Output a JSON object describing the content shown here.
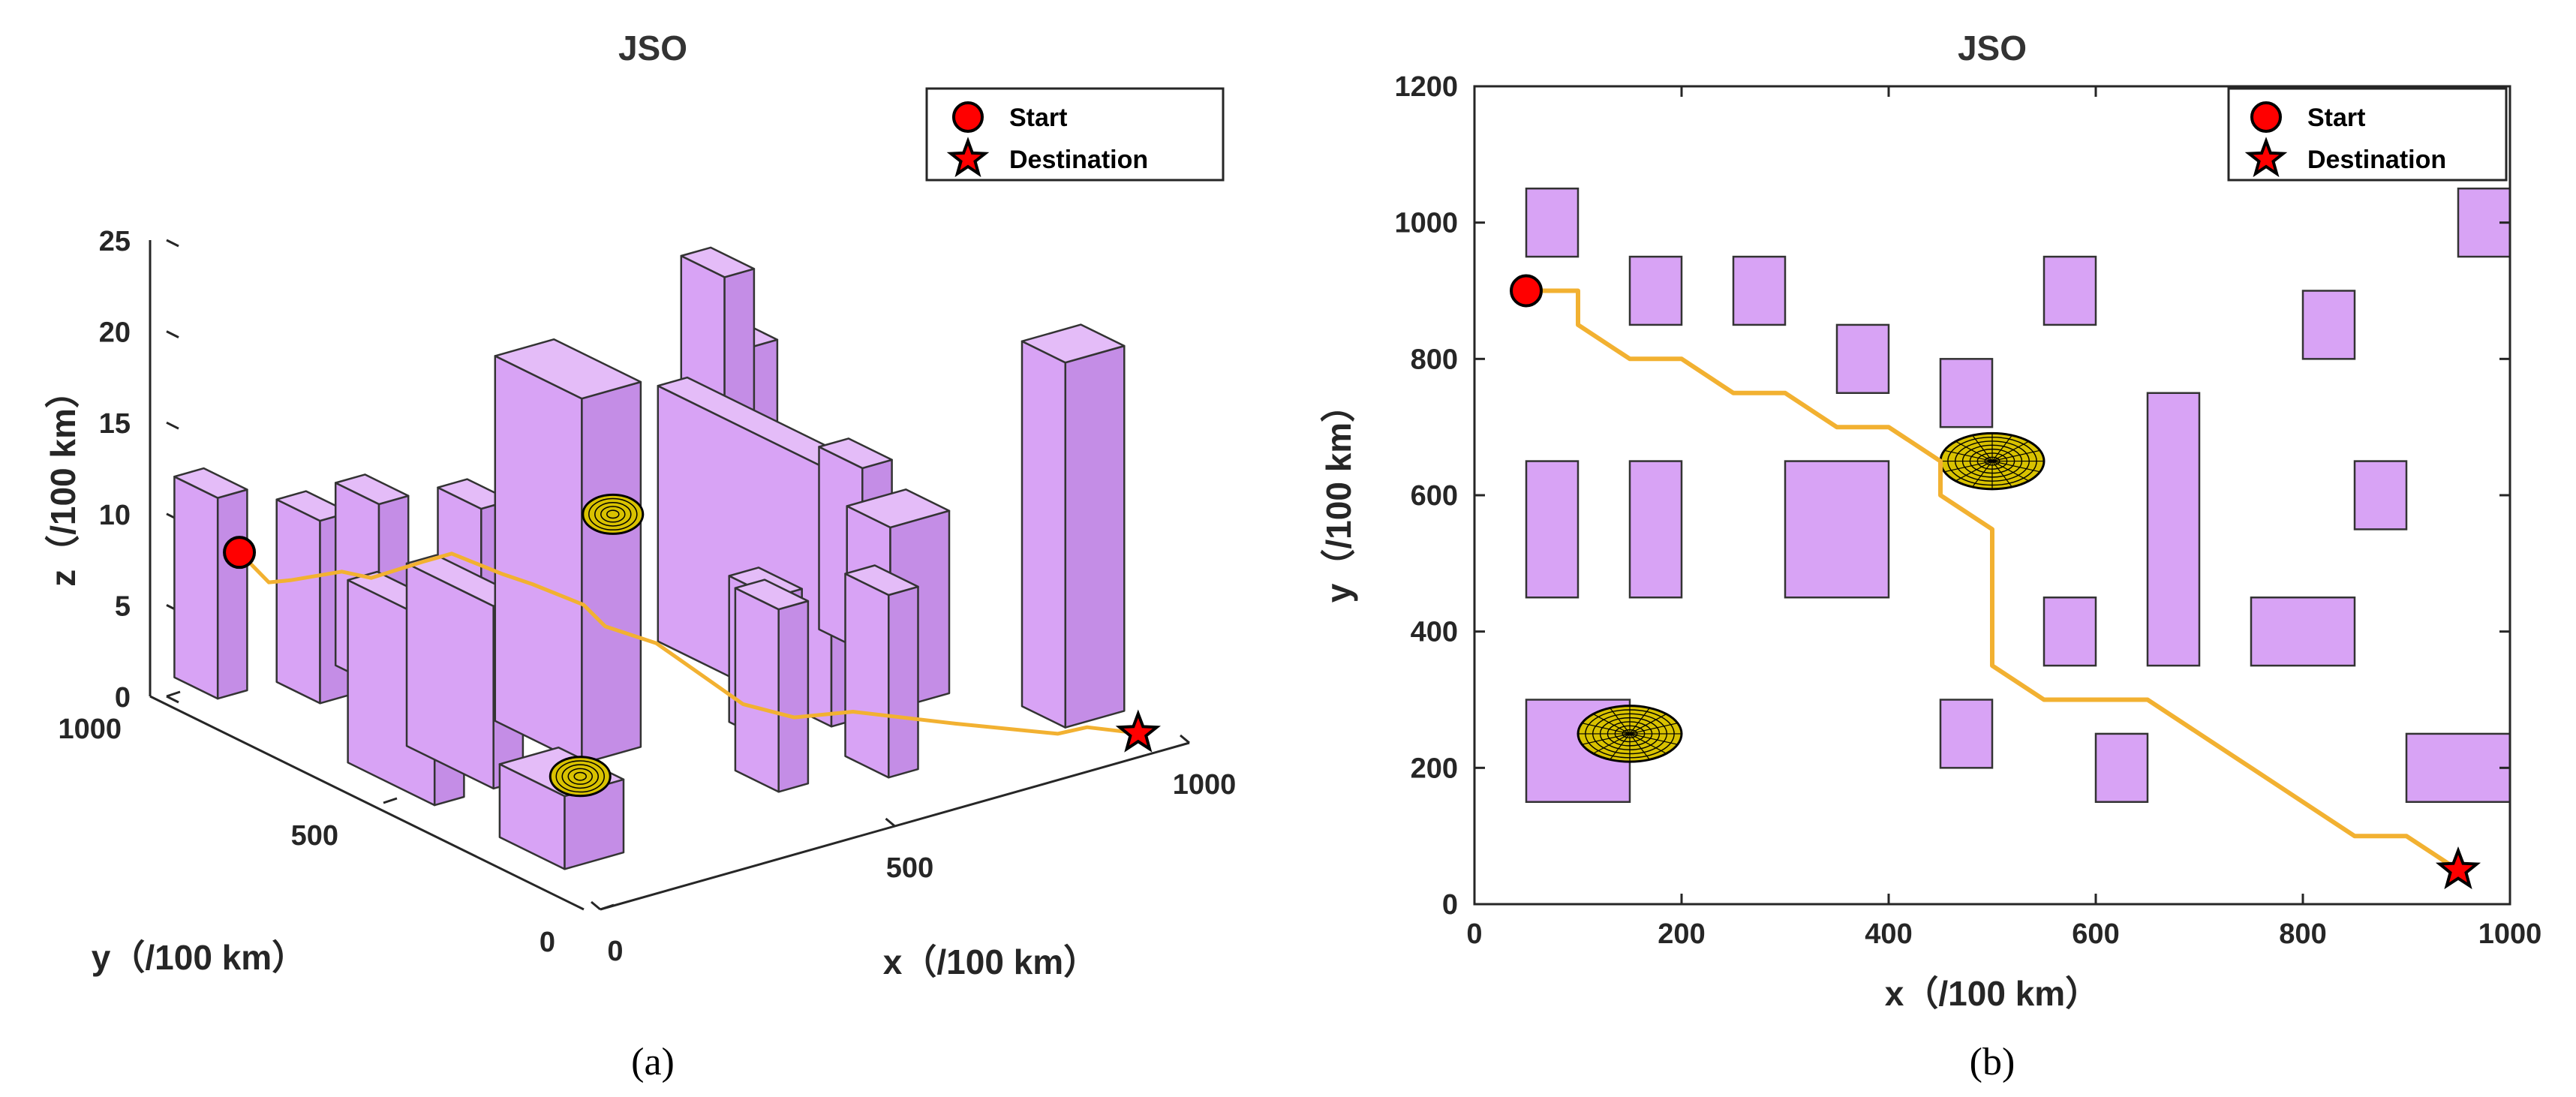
{
  "figure": {
    "caption_a": "(a)",
    "caption_b": "(b)"
  },
  "colors": {
    "obstacle_fill": "#d8a3f5",
    "obstacle_fill_dark": "#c48de6",
    "obstacle_fill_top": "#e4bcf8",
    "obstacle_edge": "#333333",
    "path": "#f2b131",
    "start": "#ff0000",
    "destination_star": "#000000",
    "threat": "#d9c200"
  },
  "chart_data": [
    {
      "type": "scatter",
      "view": "3d",
      "title": "JSO",
      "xlabel": "x（/100 km）",
      "ylabel": "y（/100 km）",
      "zlabel": "z（/100 km）",
      "xlim": [
        0,
        1000
      ],
      "ylim": [
        0,
        1000
      ],
      "zlim": [
        0,
        25
      ],
      "x_ticks": [
        "0",
        "500",
        "1000"
      ],
      "y_ticks": [
        "0",
        "500",
        "1000"
      ],
      "z_ticks": [
        "0",
        "5",
        "10",
        "15",
        "20",
        "25"
      ],
      "legend": {
        "position": "top-right",
        "entries": [
          "Start",
          "Destination"
        ]
      },
      "start": {
        "x": 50,
        "y": 900,
        "z": 8.6
      },
      "destination": {
        "x": 950,
        "y": 50,
        "z": 0.4
      },
      "path": [
        [
          50,
          900,
          8.6
        ],
        [
          100,
          900,
          6.5
        ],
        [
          100,
          850,
          7.2
        ],
        [
          150,
          800,
          7.8
        ],
        [
          200,
          800,
          7.0
        ],
        [
          250,
          750,
          8.0
        ],
        [
          300,
          750,
          8.0
        ],
        [
          350,
          700,
          7.0
        ],
        [
          400,
          700,
          6.0
        ],
        [
          450,
          650,
          5.0
        ],
        [
          450,
          600,
          4.4
        ],
        [
          500,
          550,
          3.6
        ],
        [
          500,
          350,
          2.6
        ],
        [
          550,
          300,
          2.0
        ],
        [
          650,
          300,
          1.4
        ],
        [
          750,
          200,
          1.0
        ],
        [
          850,
          100,
          0.7
        ],
        [
          900,
          100,
          0.6
        ],
        [
          950,
          50,
          0.4
        ]
      ],
      "threats": [
        {
          "x": 500,
          "y": 650,
          "z": 9.5
        },
        {
          "x": 150,
          "y": 250,
          "z": 3.0
        }
      ]
    },
    {
      "type": "scatter",
      "view": "top",
      "title": "JSO",
      "xlabel": "x（/100 km）",
      "ylabel": "y（/100 km）",
      "xlim": [
        0,
        1000
      ],
      "ylim": [
        0,
        1200
      ],
      "x_ticks": [
        "0",
        "200",
        "400",
        "600",
        "800",
        "1000"
      ],
      "y_ticks": [
        "0",
        "200",
        "400",
        "600",
        "800",
        "1000",
        "1200"
      ],
      "legend": {
        "position": "top-right",
        "entries": [
          "Start",
          "Destination"
        ]
      },
      "start": {
        "x": 50,
        "y": 900
      },
      "destination": {
        "x": 950,
        "y": 50
      },
      "path": [
        [
          50,
          900
        ],
        [
          100,
          900
        ],
        [
          100,
          850
        ],
        [
          150,
          800
        ],
        [
          200,
          800
        ],
        [
          250,
          750
        ],
        [
          300,
          750
        ],
        [
          350,
          700
        ],
        [
          400,
          700
        ],
        [
          450,
          650
        ],
        [
          450,
          600
        ],
        [
          500,
          550
        ],
        [
          500,
          350
        ],
        [
          550,
          300
        ],
        [
          650,
          300
        ],
        [
          750,
          200
        ],
        [
          850,
          100
        ],
        [
          900,
          100
        ],
        [
          950,
          50
        ]
      ],
      "threats": [
        {
          "x": 500,
          "y": 650,
          "r": 50
        },
        {
          "x": 150,
          "y": 250,
          "r": 50
        }
      ]
    }
  ],
  "obstacles": [
    {
      "x0": 50,
      "x1": 100,
      "y0": 950,
      "y1": 1050,
      "h": 11
    },
    {
      "x0": 150,
      "x1": 200,
      "y0": 850,
      "y1": 950,
      "h": 10
    },
    {
      "x0": 250,
      "x1": 300,
      "y0": 850,
      "y1": 950,
      "h": 10
    },
    {
      "x0": 350,
      "x1": 400,
      "y0": 750,
      "y1": 850,
      "h": 10
    },
    {
      "x0": 450,
      "x1": 500,
      "y0": 700,
      "y1": 800,
      "h": 12
    },
    {
      "x0": 550,
      "x1": 600,
      "y0": 850,
      "y1": 950,
      "h": 10
    },
    {
      "x0": 800,
      "x1": 850,
      "y0": 800,
      "y1": 900,
      "h": 18
    },
    {
      "x0": 950,
      "x1": 1000,
      "y0": 950,
      "y1": 1050,
      "h": 11
    },
    {
      "x0": 50,
      "x1": 100,
      "y0": 450,
      "y1": 650,
      "h": 10
    },
    {
      "x0": 150,
      "x1": 200,
      "y0": 450,
      "y1": 650,
      "h": 10
    },
    {
      "x0": 300,
      "x1": 400,
      "y0": 450,
      "y1": 650,
      "h": 20
    },
    {
      "x0": 550,
      "x1": 600,
      "y0": 350,
      "y1": 450,
      "h": 8
    },
    {
      "x0": 650,
      "x1": 700,
      "y0": 350,
      "y1": 750,
      "h": 14
    },
    {
      "x0": 750,
      "x1": 850,
      "y0": 350,
      "y1": 450,
      "h": 10
    },
    {
      "x0": 850,
      "x1": 900,
      "y0": 550,
      "y1": 650,
      "h": 10
    },
    {
      "x0": 50,
      "x1": 150,
      "y0": 150,
      "y1": 300,
      "h": 4
    },
    {
      "x0": 450,
      "x1": 500,
      "y0": 200,
      "y1": 300,
      "h": 10
    },
    {
      "x0": 600,
      "x1": 650,
      "y0": 150,
      "y1": 250,
      "h": 10
    },
    {
      "x0": 900,
      "x1": 1000,
      "y0": 150,
      "y1": 250,
      "h": 20
    }
  ]
}
